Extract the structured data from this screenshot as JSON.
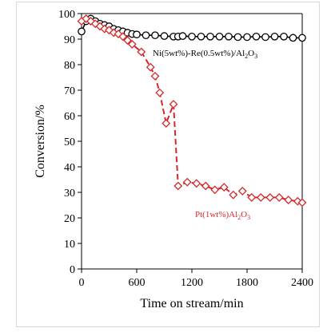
{
  "chart_data": {
    "type": "line",
    "xlabel": "Time on stream/min",
    "ylabel": "Conversion/%",
    "xlim": [
      0,
      2400
    ],
    "ylim": [
      0,
      100
    ],
    "x_ticks": [
      "0",
      "600",
      "1200",
      "1800",
      "2400"
    ],
    "y_ticks": [
      "0",
      "10",
      "20",
      "30",
      "40",
      "50",
      "60",
      "70",
      "80",
      "90",
      "100"
    ],
    "grid": false,
    "series": [
      {
        "name": "Ni(5wt%)-Re(0.5wt%)/Al2O3",
        "label_parts": [
          "Ni(5wt%)-Re(0.5wt%)/Al",
          "2",
          "O",
          "3"
        ],
        "color": "#000000",
        "marker": "circle",
        "x": [
          0,
          50,
          100,
          150,
          200,
          250,
          300,
          350,
          400,
          450,
          500,
          550,
          600,
          700,
          800,
          900,
          1000,
          1050,
          1100,
          1200,
          1300,
          1400,
          1500,
          1600,
          1700,
          1800,
          1900,
          2000,
          2100,
          2200,
          2300,
          2400
        ],
        "y": [
          93,
          97,
          98,
          97,
          96,
          95.5,
          95,
          94,
          93.5,
          93,
          92.5,
          92,
          91.8,
          91.5,
          91.5,
          91.2,
          91,
          91,
          91.2,
          91,
          91,
          91,
          91,
          91,
          90.8,
          90.8,
          91,
          90.8,
          91,
          91,
          90.5,
          90.5
        ]
      },
      {
        "name": "Pt(1wt%)Al2O3",
        "label_parts": [
          "Pt(1wt%)Al",
          "2",
          "O",
          "3"
        ],
        "color": "#d62728",
        "marker": "diamond",
        "x": [
          0,
          50,
          100,
          150,
          200,
          250,
          300,
          350,
          400,
          450,
          500,
          550,
          650,
          750,
          800,
          850,
          920,
          1000,
          1050,
          1150,
          1250,
          1350,
          1450,
          1550,
          1650,
          1750,
          1850,
          1950,
          2050,
          2150,
          2250,
          2350,
          2400
        ],
        "y": [
          97,
          98,
          97,
          96,
          95,
          94,
          93.5,
          92.5,
          92,
          91,
          89.5,
          88,
          85,
          79,
          75.5,
          69,
          57,
          64.5,
          32.5,
          34,
          33.5,
          32.5,
          31,
          32,
          29,
          30.5,
          28,
          28,
          28,
          28,
          27,
          26.5,
          26
        ]
      }
    ]
  }
}
